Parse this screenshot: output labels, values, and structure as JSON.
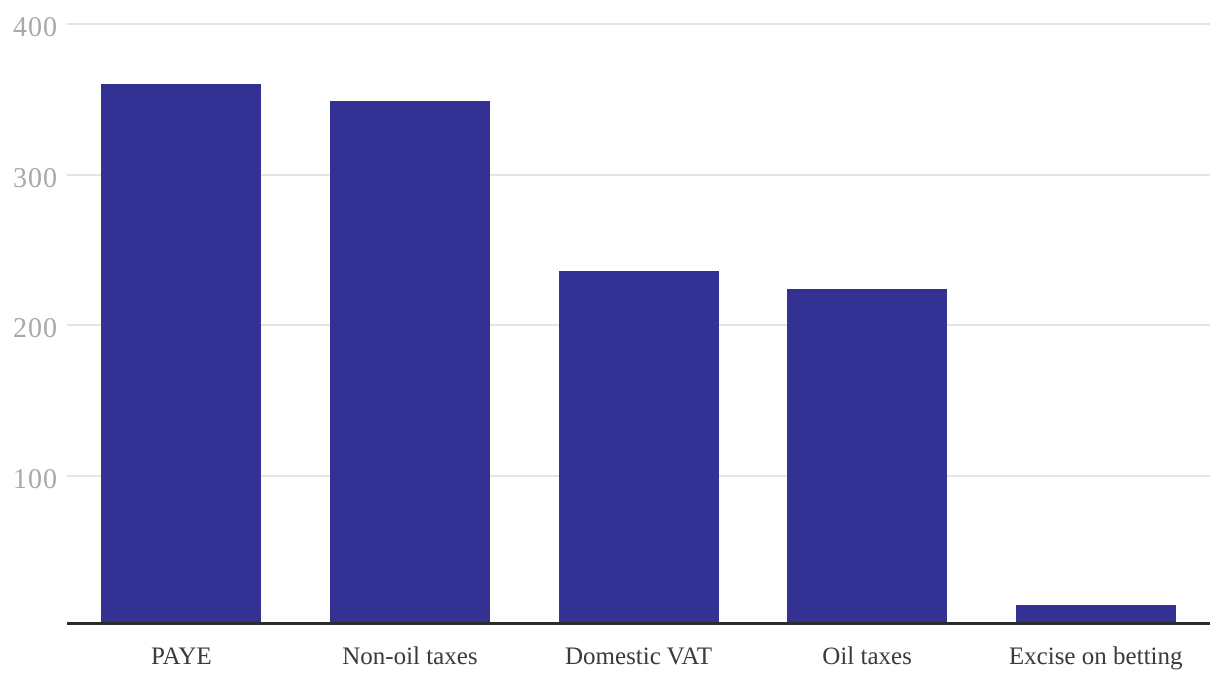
{
  "chart_data": {
    "type": "bar",
    "categories": [
      "PAYE",
      "Non-oil taxes",
      "Domestic VAT",
      "Oil taxes",
      "Excise on betting"
    ],
    "values": [
      360,
      349,
      236,
      224,
      14
    ],
    "title": "",
    "xlabel": "",
    "ylabel": "",
    "ylim": [
      0,
      400
    ],
    "yticks": [
      400,
      300,
      200,
      100
    ],
    "grid": true,
    "legend_position": "none",
    "colors": {
      "bar": "#333194",
      "gridline": "#e4e4e4",
      "axis_line": "#2b2b2b",
      "tick_label": "#a9a9a9",
      "category_label": "#3b3b3b"
    }
  }
}
